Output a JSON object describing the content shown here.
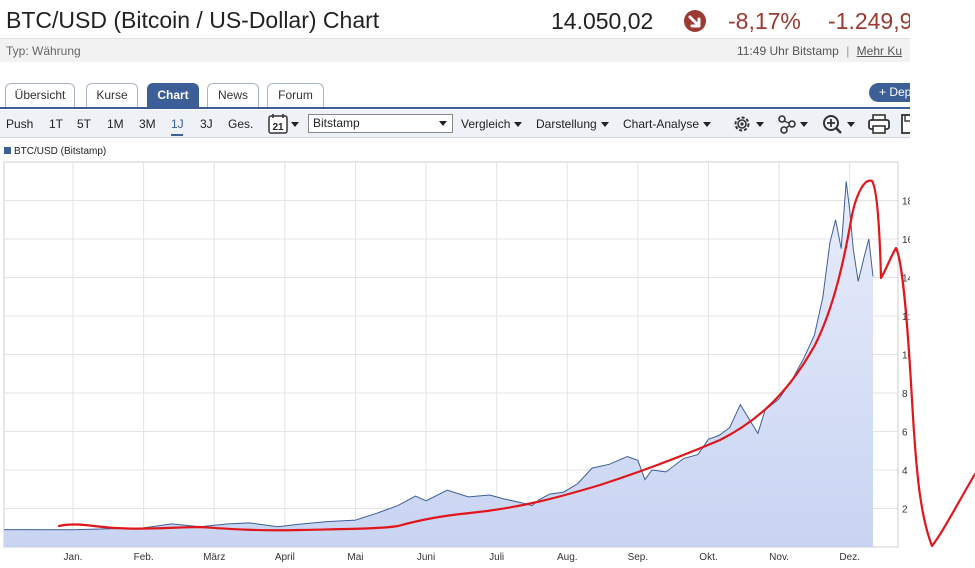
{
  "header": {
    "title": "BTC/USD (Bitcoin / US-Dollar) Chart",
    "price": "14.050,02",
    "change_pct": "-8,17%",
    "change_abs": "-1.249,9",
    "type_label": "Typ: Währung",
    "time": "11:49 Uhr",
    "exchange": "Bitstamp",
    "separator": "|",
    "more_link": "Mehr Ku"
  },
  "tabs": [
    {
      "label": "Übersicht",
      "active": false
    },
    {
      "label": "Kurse",
      "active": false
    },
    {
      "label": "Chart",
      "active": true
    },
    {
      "label": "News",
      "active": false
    },
    {
      "label": "Forum",
      "active": false
    }
  ],
  "depot_button": "+ Dep",
  "toolbar": {
    "push": "Push",
    "ranges": [
      "1T",
      "5T",
      "1M",
      "3M",
      "1J",
      "3J",
      "Ges."
    ],
    "active_range": "1J",
    "exchange_select": "Bitstamp",
    "compare": "Vergleich",
    "display": "Darstellung",
    "analysis": "Chart-Analyse",
    "icons": [
      "calendar-icon",
      "gear-icon",
      "share-icon",
      "zoom-icon",
      "print-icon",
      "save-icon"
    ],
    "calendar_day": "21"
  },
  "colors": {
    "accent": "#3d5f98",
    "negative": "#9b3a32",
    "area_fill": "#c9d4f2",
    "series_line": "#3d5f98",
    "annotation": "#e0161b"
  },
  "chart_data": {
    "type": "area",
    "legend": "BTC/USD (Bitstamp)",
    "legend_placement": "top-left",
    "grid": true,
    "xlabels": [
      "Jan.",
      "Feb.",
      "März",
      "April",
      "Mai",
      "Juni",
      "Juli",
      "Aug.",
      "Sep.",
      "Okt.",
      "Nov.",
      "Dez."
    ],
    "ytick_labels": [
      "2",
      "4",
      "6",
      "8",
      "1(",
      "1:",
      "14",
      "16",
      "18"
    ],
    "ylim": [
      0,
      20000
    ],
    "series": [
      {
        "values": [
          [
            0,
            900
          ],
          [
            1,
            990
          ],
          [
            1.4,
            1200
          ],
          [
            1.8,
            1050
          ],
          [
            2.2,
            1200
          ],
          [
            2.5,
            1250
          ],
          [
            2.9,
            1050
          ],
          [
            3.2,
            1180
          ],
          [
            3.6,
            1320
          ],
          [
            4.0,
            1400
          ],
          [
            4.3,
            1750
          ],
          [
            4.6,
            2150
          ],
          [
            4.85,
            2650
          ],
          [
            5.0,
            2400
          ],
          [
            5.3,
            2950
          ],
          [
            5.6,
            2600
          ],
          [
            5.9,
            2700
          ],
          [
            6.1,
            2500
          ],
          [
            6.35,
            2300
          ],
          [
            6.5,
            2150
          ],
          [
            6.6,
            2450
          ],
          [
            6.75,
            2750
          ],
          [
            6.95,
            2850
          ],
          [
            7.15,
            3300
          ],
          [
            7.35,
            4100
          ],
          [
            7.6,
            4300
          ],
          [
            7.85,
            4700
          ],
          [
            8.0,
            4500
          ],
          [
            8.1,
            3500
          ],
          [
            8.2,
            4000
          ],
          [
            8.4,
            3900
          ],
          [
            8.65,
            4600
          ],
          [
            8.85,
            4800
          ],
          [
            9.0,
            5600
          ],
          [
            9.15,
            5800
          ],
          [
            9.3,
            6200
          ],
          [
            9.45,
            7400
          ],
          [
            9.55,
            6800
          ],
          [
            9.7,
            5900
          ],
          [
            9.8,
            7100
          ],
          [
            10.0,
            7700
          ],
          [
            10.2,
            8800
          ],
          [
            10.35,
            9800
          ],
          [
            10.5,
            11000
          ],
          [
            10.62,
            13000
          ],
          [
            10.72,
            15800
          ],
          [
            10.8,
            17000
          ],
          [
            10.88,
            15500
          ],
          [
            10.95,
            19000
          ],
          [
            11.0,
            17500
          ],
          [
            11.05,
            15500
          ],
          [
            11.12,
            13800
          ],
          [
            11.2,
            15000
          ],
          [
            11.27,
            16000
          ],
          [
            11.33,
            14050
          ]
        ]
      }
    ]
  }
}
